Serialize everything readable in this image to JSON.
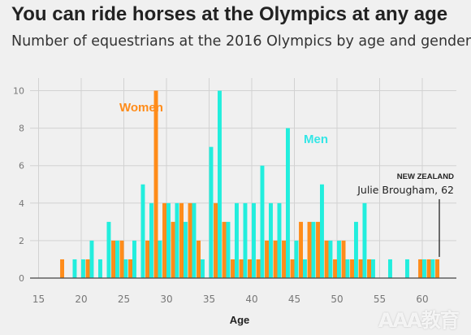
{
  "title": "You can ride horses at the Olympics at any age",
  "subtitle": "Number of equestrians at the 2016 Olympics by age and gender",
  "watermark": "AAA教育",
  "chart_data": {
    "type": "bar",
    "xlabel": "Age",
    "ylabel": "",
    "xlim": [
      14,
      64
    ],
    "ylim": [
      0,
      10.5
    ],
    "xticks": [
      15,
      20,
      25,
      30,
      35,
      40,
      45,
      50,
      55,
      60
    ],
    "yticks": [
      0,
      2,
      4,
      6,
      8,
      10
    ],
    "grid": true,
    "legend": "inline",
    "series": [
      {
        "name": "Women",
        "color": "#ff8c1a",
        "label_at_age": 24,
        "x": [
          18,
          21,
          24,
          25,
          26,
          28,
          29,
          30,
          31,
          32,
          33,
          34,
          36,
          37,
          38,
          39,
          40,
          41,
          42,
          43,
          44,
          45,
          46,
          47,
          48,
          49,
          50,
          51,
          52,
          53,
          54,
          60,
          61,
          62
        ],
        "values": [
          1,
          1,
          2,
          2,
          1,
          2,
          10,
          4,
          3,
          4,
          4,
          2,
          4,
          3,
          1,
          1,
          1,
          1,
          2,
          2,
          2,
          1,
          3,
          3,
          3,
          2,
          1,
          2,
          1,
          1,
          1,
          1,
          1,
          1
        ]
      },
      {
        "name": "Men",
        "color": "#22eedd",
        "label_at_age": 46,
        "x": [
          19,
          20,
          21,
          22,
          23,
          24,
          25,
          26,
          27,
          28,
          29,
          30,
          31,
          32,
          33,
          34,
          35,
          36,
          37,
          38,
          39,
          40,
          41,
          42,
          43,
          44,
          45,
          46,
          47,
          48,
          49,
          50,
          51,
          52,
          53,
          54,
          56,
          58,
          60,
          61
        ],
        "values": [
          1,
          1,
          2,
          1,
          3,
          2,
          1,
          2,
          5,
          4,
          2,
          4,
          4,
          3,
          4,
          1,
          7,
          10,
          3,
          4,
          4,
          4,
          6,
          4,
          4,
          8,
          2,
          1,
          3,
          5,
          2,
          2,
          1,
          3,
          4,
          1,
          1,
          1,
          1,
          1
        ]
      }
    ],
    "annotations": [
      {
        "heading": "NEW ZEALAND",
        "text": "Julie Brougham, 62",
        "age": 62,
        "value": 1
      }
    ]
  }
}
